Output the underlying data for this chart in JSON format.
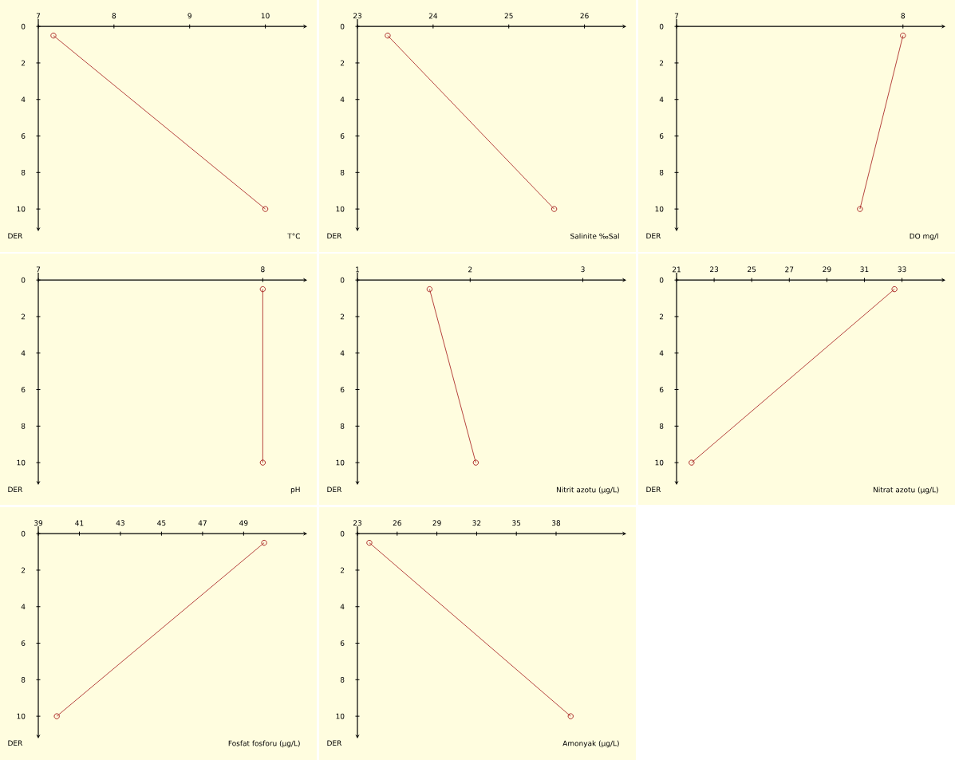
{
  "chart_data": [
    {
      "type": "line",
      "xlabel": "T°C",
      "ylabel": "DER",
      "xlim": [
        7,
        10.5
      ],
      "ylim": [
        11,
        -0.4
      ],
      "xticks": [
        7,
        8,
        9,
        10
      ],
      "yticks": [
        0,
        2,
        4,
        6,
        8,
        10
      ],
      "marker": "circle",
      "line_style": "solid",
      "series": [
        {
          "color": "#a31515",
          "x": [
            7.2,
            10.0
          ],
          "values": [
            0.5,
            10
          ]
        }
      ]
    },
    {
      "type": "line",
      "xlabel": "Salinite ‰Sal",
      "ylabel": "DER",
      "xlim": [
        23,
        26.5
      ],
      "ylim": [
        11,
        -0.4
      ],
      "xticks": [
        23,
        24,
        25,
        26
      ],
      "yticks": [
        0,
        2,
        4,
        6,
        8,
        10
      ],
      "marker": "circle",
      "line_style": "solid",
      "series": [
        {
          "color": "#a31515",
          "x": [
            23.4,
            25.6
          ],
          "values": [
            0.5,
            10
          ]
        }
      ]
    },
    {
      "type": "line",
      "xlabel": "DO mg/l",
      "ylabel": "DER",
      "xlim": [
        7,
        8.17
      ],
      "ylim": [
        11,
        -0.4
      ],
      "xticks": [
        7,
        8
      ],
      "yticks": [
        0,
        2,
        4,
        6,
        8,
        10
      ],
      "marker": "circle",
      "line_style": "solid",
      "series": [
        {
          "color": "#a31515",
          "x": [
            8.0,
            7.81
          ],
          "values": [
            0.5,
            10
          ]
        }
      ]
    },
    {
      "type": "line",
      "xlabel": "pH",
      "ylabel": "DER",
      "xlim": [
        7,
        8.18
      ],
      "ylim": [
        11,
        -0.4
      ],
      "xticks": [
        7,
        8
      ],
      "yticks": [
        0,
        2,
        4,
        6,
        8,
        10
      ],
      "marker": "circle",
      "line_style": "solid",
      "series": [
        {
          "color": "#a31515",
          "x": [
            8.0,
            8.0
          ],
          "values": [
            0.5,
            10
          ]
        }
      ]
    },
    {
      "type": "line",
      "xlabel": "Nitrit azotu (µg/L)",
      "ylabel": "DER",
      "xlim": [
        1,
        3.35
      ],
      "ylim": [
        11,
        -0.4
      ],
      "xticks": [
        1,
        2,
        3
      ],
      "yticks": [
        0,
        2,
        4,
        6,
        8,
        10
      ],
      "marker": "circle",
      "line_style": "solid",
      "series": [
        {
          "color": "#a31515",
          "x": [
            1.64,
            2.05
          ],
          "values": [
            0.5,
            10
          ]
        }
      ]
    },
    {
      "type": "line",
      "xlabel": "Nitrat azotu (µg/L)",
      "ylabel": "DER",
      "xlim": [
        21,
        35.1
      ],
      "ylim": [
        11,
        -0.4
      ],
      "xticks": [
        21,
        23,
        25,
        27,
        29,
        31,
        33
      ],
      "yticks": [
        0,
        2,
        4,
        6,
        8,
        10
      ],
      "marker": "circle",
      "line_style": "solid",
      "series": [
        {
          "color": "#a31515",
          "x": [
            32.6,
            21.8
          ],
          "values": [
            0.5,
            10
          ]
        }
      ]
    },
    {
      "type": "line",
      "xlabel": "Fosfat fosforu (µg/L)",
      "ylabel": "DER",
      "xlim": [
        39,
        51.9
      ],
      "ylim": [
        11,
        -0.4
      ],
      "xticks": [
        39,
        41,
        43,
        45,
        47,
        49
      ],
      "yticks": [
        0,
        2,
        4,
        6,
        8,
        10
      ],
      "marker": "circle",
      "line_style": "solid",
      "series": [
        {
          "color": "#a31515",
          "x": [
            50.0,
            39.9
          ],
          "values": [
            0.5,
            10
          ]
        }
      ]
    },
    {
      "type": "line",
      "xlabel": "Amonyak (µg/L)",
      "ylabel": "DER",
      "xlim": [
        23,
        43
      ],
      "ylim": [
        11,
        -0.4
      ],
      "xticks": [
        23,
        26,
        29,
        32,
        35,
        38
      ],
      "yticks": [
        0,
        2,
        4,
        6,
        8,
        10
      ],
      "marker": "circle",
      "line_style": "solid",
      "series": [
        {
          "color": "#a31515",
          "x": [
            23.9,
            39.1
          ],
          "values": [
            0.5,
            10
          ]
        }
      ]
    }
  ]
}
